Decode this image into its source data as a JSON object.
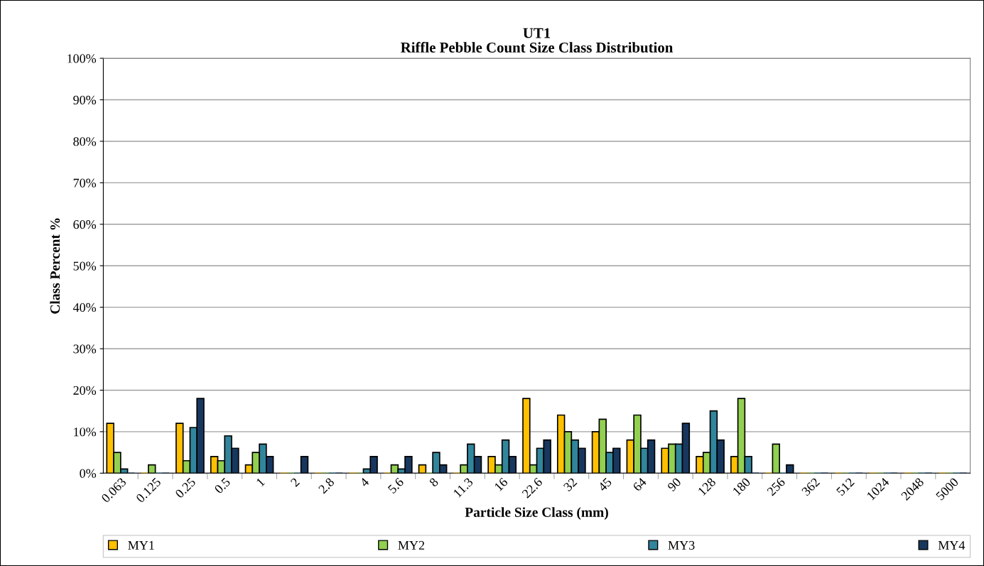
{
  "chart_data": {
    "type": "bar",
    "title": "UT1\nRiffle Pebble Count Size Class Distribution",
    "xlabel": "Particle Size Class (mm)",
    "ylabel": "Class Percent %",
    "categories": [
      "0.063",
      "0.125",
      "0.25",
      "0.5",
      "1",
      "2",
      "2.8",
      "4",
      "5.6",
      "8",
      "11.3",
      "16",
      "22.6",
      "32",
      "45",
      "64",
      "90",
      "128",
      "180",
      "256",
      "362",
      "512",
      "1024",
      "2048",
      "5000"
    ],
    "series": [
      {
        "name": "MY1",
        "color": "#ffc000",
        "values": [
          12,
          0,
          12,
          4,
          2,
          0,
          0,
          0,
          0,
          2,
          0,
          4,
          18,
          14,
          10,
          8,
          6,
          4,
          4,
          0,
          0,
          0,
          0,
          0,
          0
        ]
      },
      {
        "name": "MY2",
        "color": "#92d050",
        "values": [
          5,
          2,
          3,
          3,
          5,
          0,
          0,
          0,
          2,
          0,
          2,
          2,
          2,
          10,
          13,
          14,
          7,
          5,
          18,
          7,
          0,
          0,
          0,
          0,
          0
        ]
      },
      {
        "name": "MY3",
        "color": "#31859c",
        "values": [
          1,
          0,
          11,
          9,
          7,
          0,
          0,
          1,
          1,
          5,
          7,
          8,
          6,
          8,
          5,
          6,
          7,
          15,
          4,
          0,
          0,
          0,
          0,
          0,
          0
        ]
      },
      {
        "name": "MY4",
        "color": "#17375e",
        "values": [
          0,
          0,
          18,
          6,
          4,
          4,
          0,
          4,
          4,
          2,
          4,
          4,
          8,
          6,
          6,
          8,
          12,
          8,
          0,
          2,
          0,
          0,
          0,
          0,
          0
        ]
      }
    ],
    "ylim": [
      0,
      100
    ],
    "yticks": [
      {
        "value": 0,
        "label": "0%"
      },
      {
        "value": 10,
        "label": "10%"
      },
      {
        "value": 20,
        "label": "20%"
      },
      {
        "value": 30,
        "label": "30%"
      },
      {
        "value": 40,
        "label": "40%"
      },
      {
        "value": 50,
        "label": "50%"
      },
      {
        "value": 60,
        "label": "60%"
      },
      {
        "value": 70,
        "label": "70%"
      },
      {
        "value": 80,
        "label": "80%"
      },
      {
        "value": 90,
        "label": "90%"
      },
      {
        "value": 100,
        "label": "100%"
      }
    ],
    "grid": "y",
    "legend": "bottom"
  }
}
